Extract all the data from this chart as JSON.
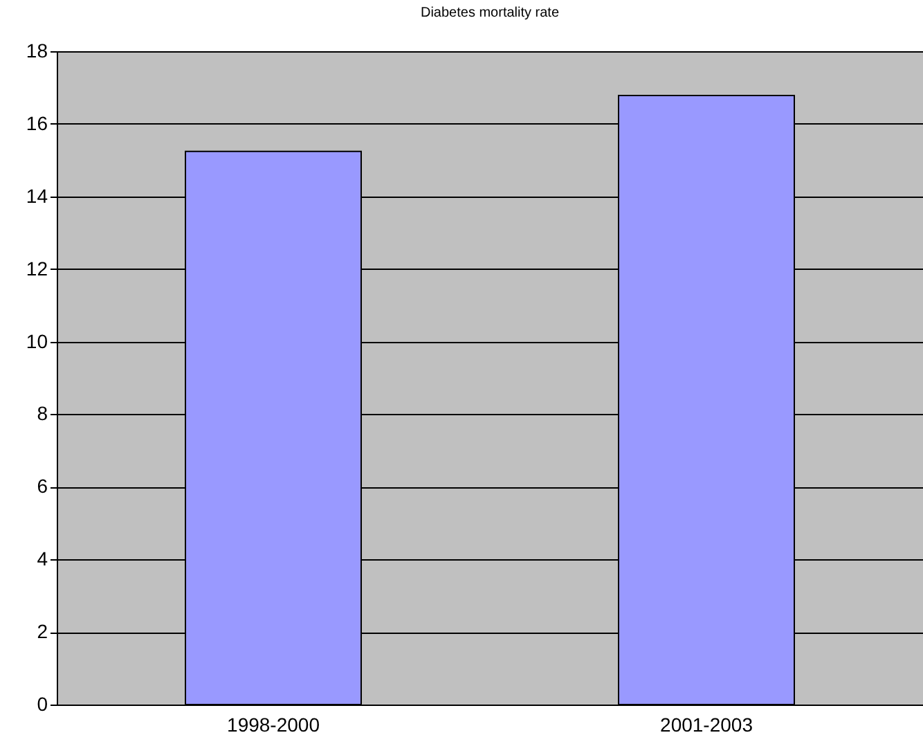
{
  "chart_data": {
    "type": "bar",
    "title": "Diabetes mortality rate",
    "categories": [
      "1998-2000",
      "2001-2003"
    ],
    "values": [
      15.24,
      16.78
    ],
    "color": "#9999ff",
    "ylim": [
      0,
      18
    ],
    "yticks": [
      0,
      2,
      4,
      6,
      8,
      10,
      12,
      14,
      16,
      18
    ],
    "grid": true
  }
}
